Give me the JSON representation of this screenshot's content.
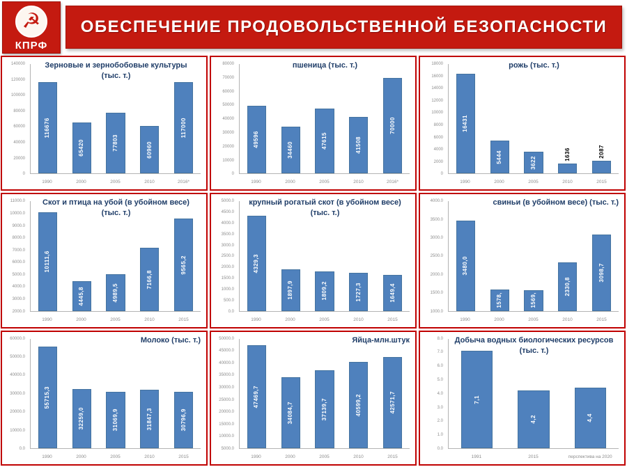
{
  "header": {
    "title": "ОБЕСПЕЧЕНИЕ  ПРОДОВОЛЬСТВЕННОЙ  БЕЗОПАСНОСТИ",
    "logo_text": "КПРФ",
    "logo_icon": "hammer-and-sickle-icon",
    "banner_color": "#c41a10"
  },
  "colors": {
    "bar": "#4f81bd",
    "panel_border": "#c00000",
    "title_text": "#1f3d68",
    "tick_text": "#8c8c8c",
    "bar_label_inside": "#ffffff",
    "bar_label_outside": "#000000"
  },
  "chart_data": [
    {
      "type": "bar",
      "title_lines": [
        "Зерновые и зернобобовые культуры",
        "(тыс. т.)"
      ],
      "title_align": "center",
      "categories": [
        "1990",
        "2000",
        "2005",
        "2010",
        "2016*"
      ],
      "values": [
        116676,
        65420,
        77803,
        60960,
        117000
      ],
      "bar_labels": [
        "116676",
        "65420",
        "77803",
        "60960",
        "117000"
      ],
      "label_placement": [
        "in",
        "in",
        "in",
        "in",
        "in"
      ],
      "ymin": 0,
      "ymax": 140000,
      "yticks": [
        "140000",
        "120000",
        "100000",
        "80000",
        "60000",
        "40000",
        "20000",
        "0"
      ],
      "grid": false,
      "legend": false
    },
    {
      "type": "bar",
      "title_lines": [
        "пшеница (тыс. т.)"
      ],
      "title_align": "center",
      "categories": [
        "1990",
        "2000",
        "2005",
        "2010",
        "2016*"
      ],
      "values": [
        49596,
        34460,
        47615,
        41508,
        70000
      ],
      "bar_labels": [
        "49596",
        "34460",
        "47615",
        "41508",
        "70000"
      ],
      "label_placement": [
        "in",
        "in",
        "in",
        "in",
        "in"
      ],
      "ymin": 0,
      "ymax": 80000,
      "yticks": [
        "80000",
        "70000",
        "60000",
        "50000",
        "40000",
        "30000",
        "20000",
        "10000",
        "0"
      ],
      "grid": false,
      "legend": false
    },
    {
      "type": "bar",
      "title_lines": [
        "рожь (тыс. т.)"
      ],
      "title_align": "center",
      "categories": [
        "1990",
        "2000",
        "2005",
        "2010",
        "2015"
      ],
      "values": [
        16431,
        5444,
        3622,
        1636,
        2087
      ],
      "bar_labels": [
        "16431",
        "5444",
        "3622",
        "1636",
        "2087"
      ],
      "label_placement": [
        "in",
        "in",
        "in",
        "out",
        "out"
      ],
      "ymin": 0,
      "ymax": 18000,
      "yticks": [
        "18000",
        "16000",
        "14000",
        "12000",
        "10000",
        "8000",
        "6000",
        "4000",
        "2000",
        "0"
      ],
      "grid": false,
      "legend": false
    },
    {
      "type": "bar",
      "title_lines": [
        "Скот и птица на убой (в убойном весе)",
        "(тыс. т.)"
      ],
      "title_align": "center",
      "categories": [
        "1990",
        "2000",
        "2005",
        "2010",
        "2015"
      ],
      "values": [
        10111.6,
        4445.8,
        4989.5,
        7166.8,
        9565.2
      ],
      "bar_labels": [
        "10111,6",
        "4445,8",
        "4989,5",
        "7166,8",
        "9565,2"
      ],
      "label_placement": [
        "in",
        "in",
        "in",
        "in",
        "in"
      ],
      "ymin": 2000,
      "ymax": 11000,
      "yticks": [
        "11000.0",
        "10000.0",
        "9000.0",
        "8000.0",
        "7000.0",
        "6000.0",
        "5000.0",
        "4000.0",
        "3000.0",
        "2000.0"
      ],
      "grid": false,
      "legend": false
    },
    {
      "type": "bar",
      "title_lines": [
        "крупный рогатый скот (в убойном весе)",
        "(тыс. т.)"
      ],
      "title_align": "center",
      "categories": [
        "1990",
        "2000",
        "2005",
        "2010",
        "2015"
      ],
      "values": [
        4329.3,
        1897.9,
        1809.2,
        1727.3,
        1649.4
      ],
      "bar_labels": [
        "4329,3",
        "1897,9",
        "1809,2",
        "1727,3",
        "1649,4"
      ],
      "label_placement": [
        "in",
        "in",
        "in",
        "in",
        "in"
      ],
      "ymin": 0,
      "ymax": 5000,
      "yticks": [
        "5000.0",
        "4500.0",
        "4000.0",
        "3500.0",
        "3000.0",
        "2500.0",
        "2000.0",
        "1500.0",
        "1000.0",
        "500.0",
        "0.0"
      ],
      "grid": false,
      "legend": false
    },
    {
      "type": "bar",
      "title_lines": [
        "свиньи (в убойном весе) (тыс. т.)"
      ],
      "title_align": "right",
      "categories": [
        "1990",
        "2000",
        "2005",
        "2010",
        "2015"
      ],
      "values": [
        3480.0,
        1578,
        1569,
        2330.8,
        3098.7
      ],
      "bar_labels": [
        "3480,0",
        "1578,",
        "1569,",
        "2330,8",
        "3098,7"
      ],
      "label_placement": [
        "in",
        "in",
        "in",
        "in",
        "in"
      ],
      "ymin": 1000,
      "ymax": 4000,
      "yticks": [
        "4000.0",
        "3500.0",
        "3000.0",
        "2500.0",
        "2000.0",
        "1500.0",
        "1000.0"
      ],
      "grid": false,
      "legend": false
    },
    {
      "type": "bar",
      "title_lines": [
        "Молоко (тыс. т.)"
      ],
      "title_align": "right",
      "categories": [
        "1990",
        "2000",
        "2005",
        "2010",
        "2015"
      ],
      "values": [
        55715.3,
        32259.0,
        31069.9,
        31847.3,
        30796.9
      ],
      "bar_labels": [
        "55715,3",
        "32259,0",
        "31069,9",
        "31847,3",
        "30796,9"
      ],
      "label_placement": [
        "in",
        "in",
        "in",
        "in",
        "in"
      ],
      "ymin": 0,
      "ymax": 60000,
      "yticks": [
        "60000.0",
        "50000.0",
        "40000.0",
        "30000.0",
        "20000.0",
        "10000.0",
        "0.0"
      ],
      "grid": false,
      "legend": false
    },
    {
      "type": "bar",
      "title_lines": [
        "Яйца-млн.штук"
      ],
      "title_align": "right",
      "categories": [
        "1990",
        "2000",
        "2005",
        "2010",
        "2015"
      ],
      "values": [
        47469.7,
        34084.7,
        37139.7,
        40599.2,
        42571.7
      ],
      "bar_labels": [
        "47469,7",
        "34084,7",
        "37139,7",
        "40599,2",
        "42571,7"
      ],
      "label_placement": [
        "in",
        "in",
        "in",
        "in",
        "in"
      ],
      "ymin": 5000,
      "ymax": 50000,
      "yticks": [
        "50000.0",
        "45000.0",
        "40000.0",
        "35000.0",
        "30000.0",
        "25000.0",
        "20000.0",
        "15000.0",
        "10000.0",
        "5000.0"
      ],
      "grid": false,
      "legend": false
    },
    {
      "type": "bar",
      "title_lines": [
        "Добыча водных биологических ресурсов",
        "(тыс. т.)"
      ],
      "title_align": "center",
      "categories": [
        "1991",
        "2015",
        "перспектива на 2020"
      ],
      "values": [
        7.1,
        4.2,
        4.4
      ],
      "bar_labels": [
        "7,1",
        "4,2",
        "4,4"
      ],
      "label_placement": [
        "in",
        "in",
        "in"
      ],
      "ymin": 0,
      "ymax": 8,
      "yticks": [
        "8.0",
        "7.0",
        "6.0",
        "5.0",
        "4.0",
        "3.0",
        "2.0",
        "1.0",
        "0.0"
      ],
      "grid": false,
      "legend": false
    }
  ]
}
